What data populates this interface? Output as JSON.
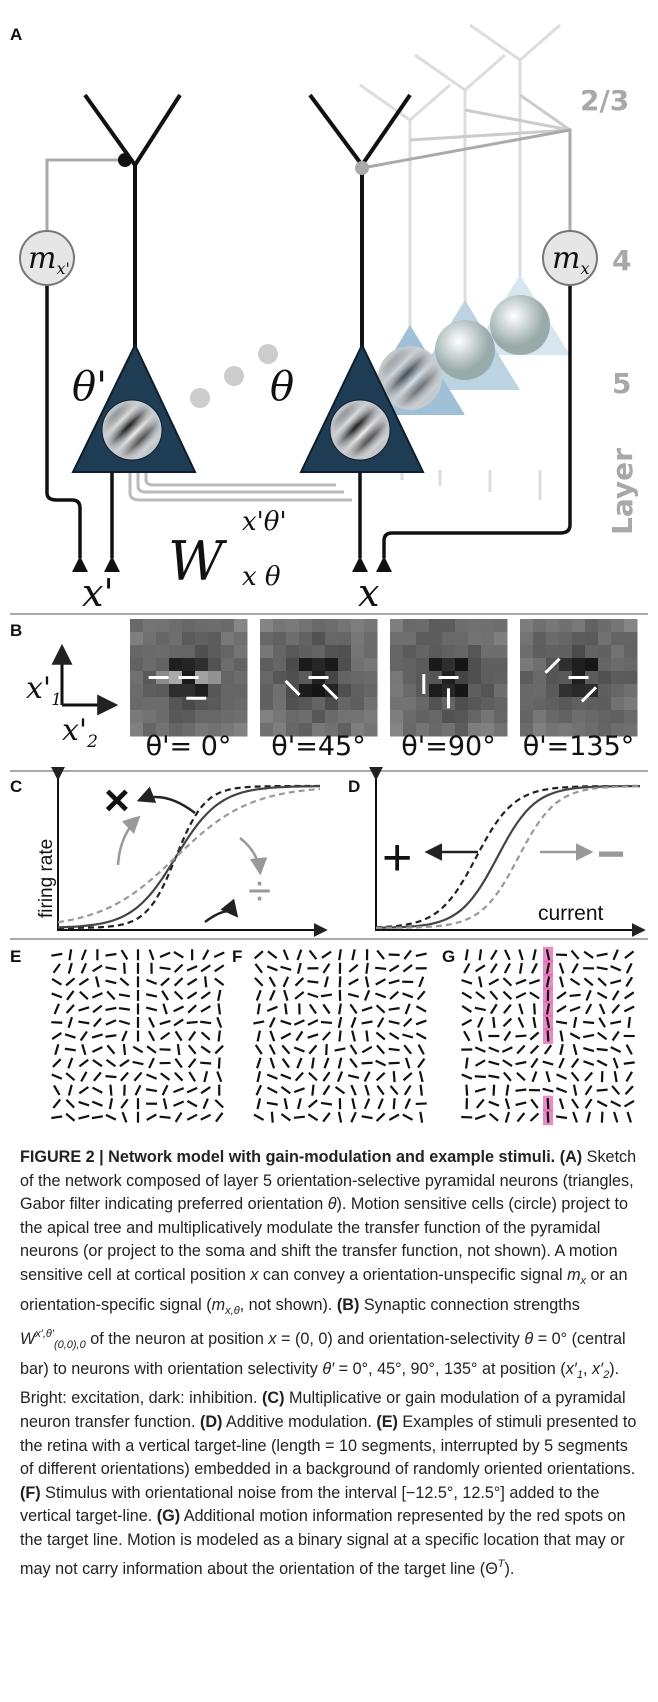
{
  "figure": {
    "panel_a": {
      "label": "A",
      "layer_ticks": [
        "2/3",
        "4",
        "5"
      ],
      "layer_title": "Layer",
      "cell_left": {
        "base": "m",
        "sub": "x'"
      },
      "cell_right": {
        "base": "m",
        "sub": "x"
      },
      "theta_left": "θ'",
      "theta_right": "θ",
      "weight": {
        "base": "W",
        "sup": "x'θ'",
        "sub": "x θ"
      },
      "input_left": "x'",
      "input_right": "x"
    },
    "panel_b": {
      "label": "B",
      "axis_up": {
        "base": "x'",
        "sub": "1"
      },
      "axis_right": {
        "base": "x'",
        "sub": "2"
      },
      "angles": [
        "θ'= 0°",
        "θ'=45°",
        "θ'=90°",
        "θ'=135°"
      ]
    },
    "panel_c": {
      "label": "C",
      "ylabel": "firing rate",
      "multiply": "×",
      "divide": "÷"
    },
    "panel_d": {
      "label": "D",
      "xlabel": "current",
      "plus": "+",
      "minus": "−"
    },
    "panel_e": {
      "label": "E"
    },
    "panel_f": {
      "label": "F"
    },
    "panel_g": {
      "label": "G"
    }
  },
  "caption": {
    "runs": [
      {
        "text": "FIGURE 2 | Network model with gain-modulation and example stimuli. ",
        "style": "bold"
      },
      {
        "text": "(A)",
        "style": "bold"
      },
      {
        "text": " Sketch of the network composed of layer 5 orientation-selective pyramidal neurons (triangles, Gabor filter indicating preferred orientation "
      },
      {
        "text": "θ",
        "style": "italic"
      },
      {
        "text": "). Motion sensitive cells (circle) project to the apical tree and multiplicatively modulate the transfer function of the pyramidal neurons (or project to the soma and shift the transfer function, not shown). A motion sensitive cell at cortical position "
      },
      {
        "text": "x",
        "style": "italic"
      },
      {
        "text": " can convey a orientation-unspecific signal "
      },
      {
        "text": "m",
        "style": "italic"
      },
      {
        "text": "x",
        "style": "sub"
      },
      {
        "text": " or an orientation-specific signal ("
      },
      {
        "text": "m",
        "style": "italic"
      },
      {
        "text": "x,θ",
        "style": "sub"
      },
      {
        "text": ", not shown). "
      },
      {
        "text": "(B)",
        "style": "bold"
      },
      {
        "text": " Synaptic connection strengths "
      },
      {
        "text": "W",
        "style": "italic"
      },
      {
        "text": "x′,θ′",
        "style": "sup"
      },
      {
        "text": "(0,0),0",
        "style": "sub"
      },
      {
        "text": " of the neuron at position "
      },
      {
        "text": "x",
        "style": "italic"
      },
      {
        "text": " = (0, 0) and orientation-selectivity "
      },
      {
        "text": "θ",
        "style": "italic"
      },
      {
        "text": " = 0° (central bar) to neurons with orientation selectivity "
      },
      {
        "text": "θ′",
        "style": "italic"
      },
      {
        "text": " = 0°, 45°, 90°, 135° at position ("
      },
      {
        "text": "x′",
        "style": "italic"
      },
      {
        "text": "1",
        "style": "sub"
      },
      {
        "text": ", "
      },
      {
        "text": "x′",
        "style": "italic"
      },
      {
        "text": "2",
        "style": "sub"
      },
      {
        "text": "). Bright: excitation, dark: inhibition. "
      },
      {
        "text": "(C)",
        "style": "bold"
      },
      {
        "text": " Multiplicative or gain modulation of a pyramidal neuron transfer function. "
      },
      {
        "text": "(D)",
        "style": "bold"
      },
      {
        "text": " Additive modulation. "
      },
      {
        "text": "(E)",
        "style": "bold"
      },
      {
        "text": " Examples of stimuli presented to the retina with a vertical target-line (length = 10 segments, interrupted by 5 segments of different orientations) embedded in a background of randomly oriented orientations. "
      },
      {
        "text": "(F)",
        "style": "bold"
      },
      {
        "text": " Stimulus with orientational noise from the interval [−12.5°, 12.5°] added to the vertical target-line. "
      },
      {
        "text": "(G)",
        "style": "bold"
      },
      {
        "text": " Additional motion information represented by the red spots on the target line. Motion is modeled as a binary signal at a specific location that may or may not carry information about the orientation of the target line (Θ"
      },
      {
        "text": "T",
        "style": "sup"
      },
      {
        "text": ")."
      }
    ]
  }
}
